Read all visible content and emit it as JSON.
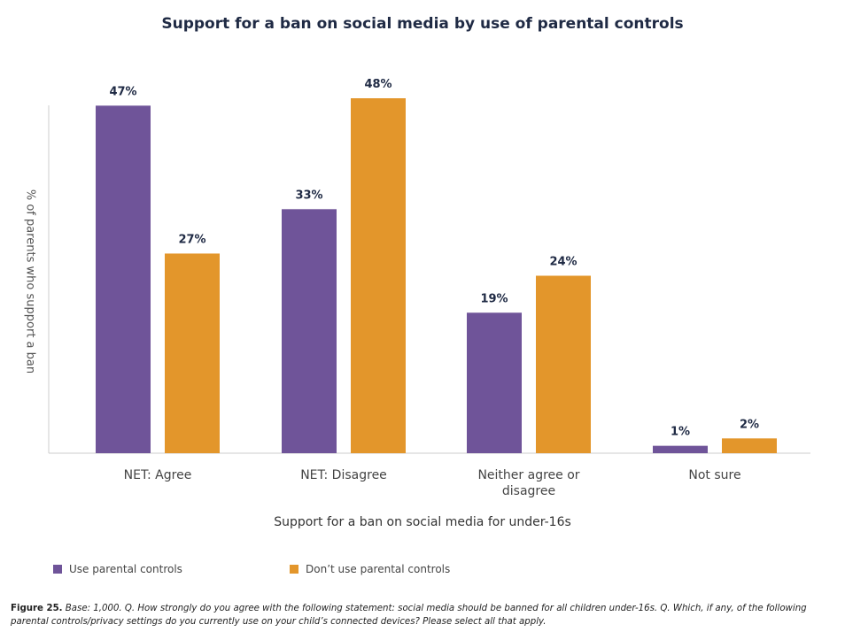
{
  "chart_data": {
    "type": "bar",
    "title": "Support for a ban on social media by use of parental controls",
    "xlabel": "Support for a ban on social media for under-16s",
    "ylabel": "% of parents who support a ban",
    "categories": [
      "NET: Agree",
      "NET: Disagree",
      "Neither agree or disagree",
      "Not sure"
    ],
    "series": [
      {
        "name": "Use parental controls",
        "values": [
          47,
          33,
          19,
          1
        ],
        "color": "#6f5499",
        "labels": [
          "47%",
          "33%",
          "19%",
          "1%"
        ]
      },
      {
        "name": "Don’t use parental controls",
        "values": [
          27,
          48,
          24,
          2
        ],
        "color": "#e3962b",
        "labels": [
          "27%",
          "48%",
          "24%",
          "2%"
        ]
      }
    ],
    "ylim": [
      0,
      50
    ],
    "grid": false,
    "legend": "bottom-left"
  },
  "caption": {
    "figure": "Figure 25.",
    "text": "Base: 1,000. Q. How strongly do you agree with the following statement: social media should be banned for all children under-16s. Q. Which, if any, of the following parental controls/privacy settings do you currently use on your child’s connected devices? Please select all that apply."
  }
}
